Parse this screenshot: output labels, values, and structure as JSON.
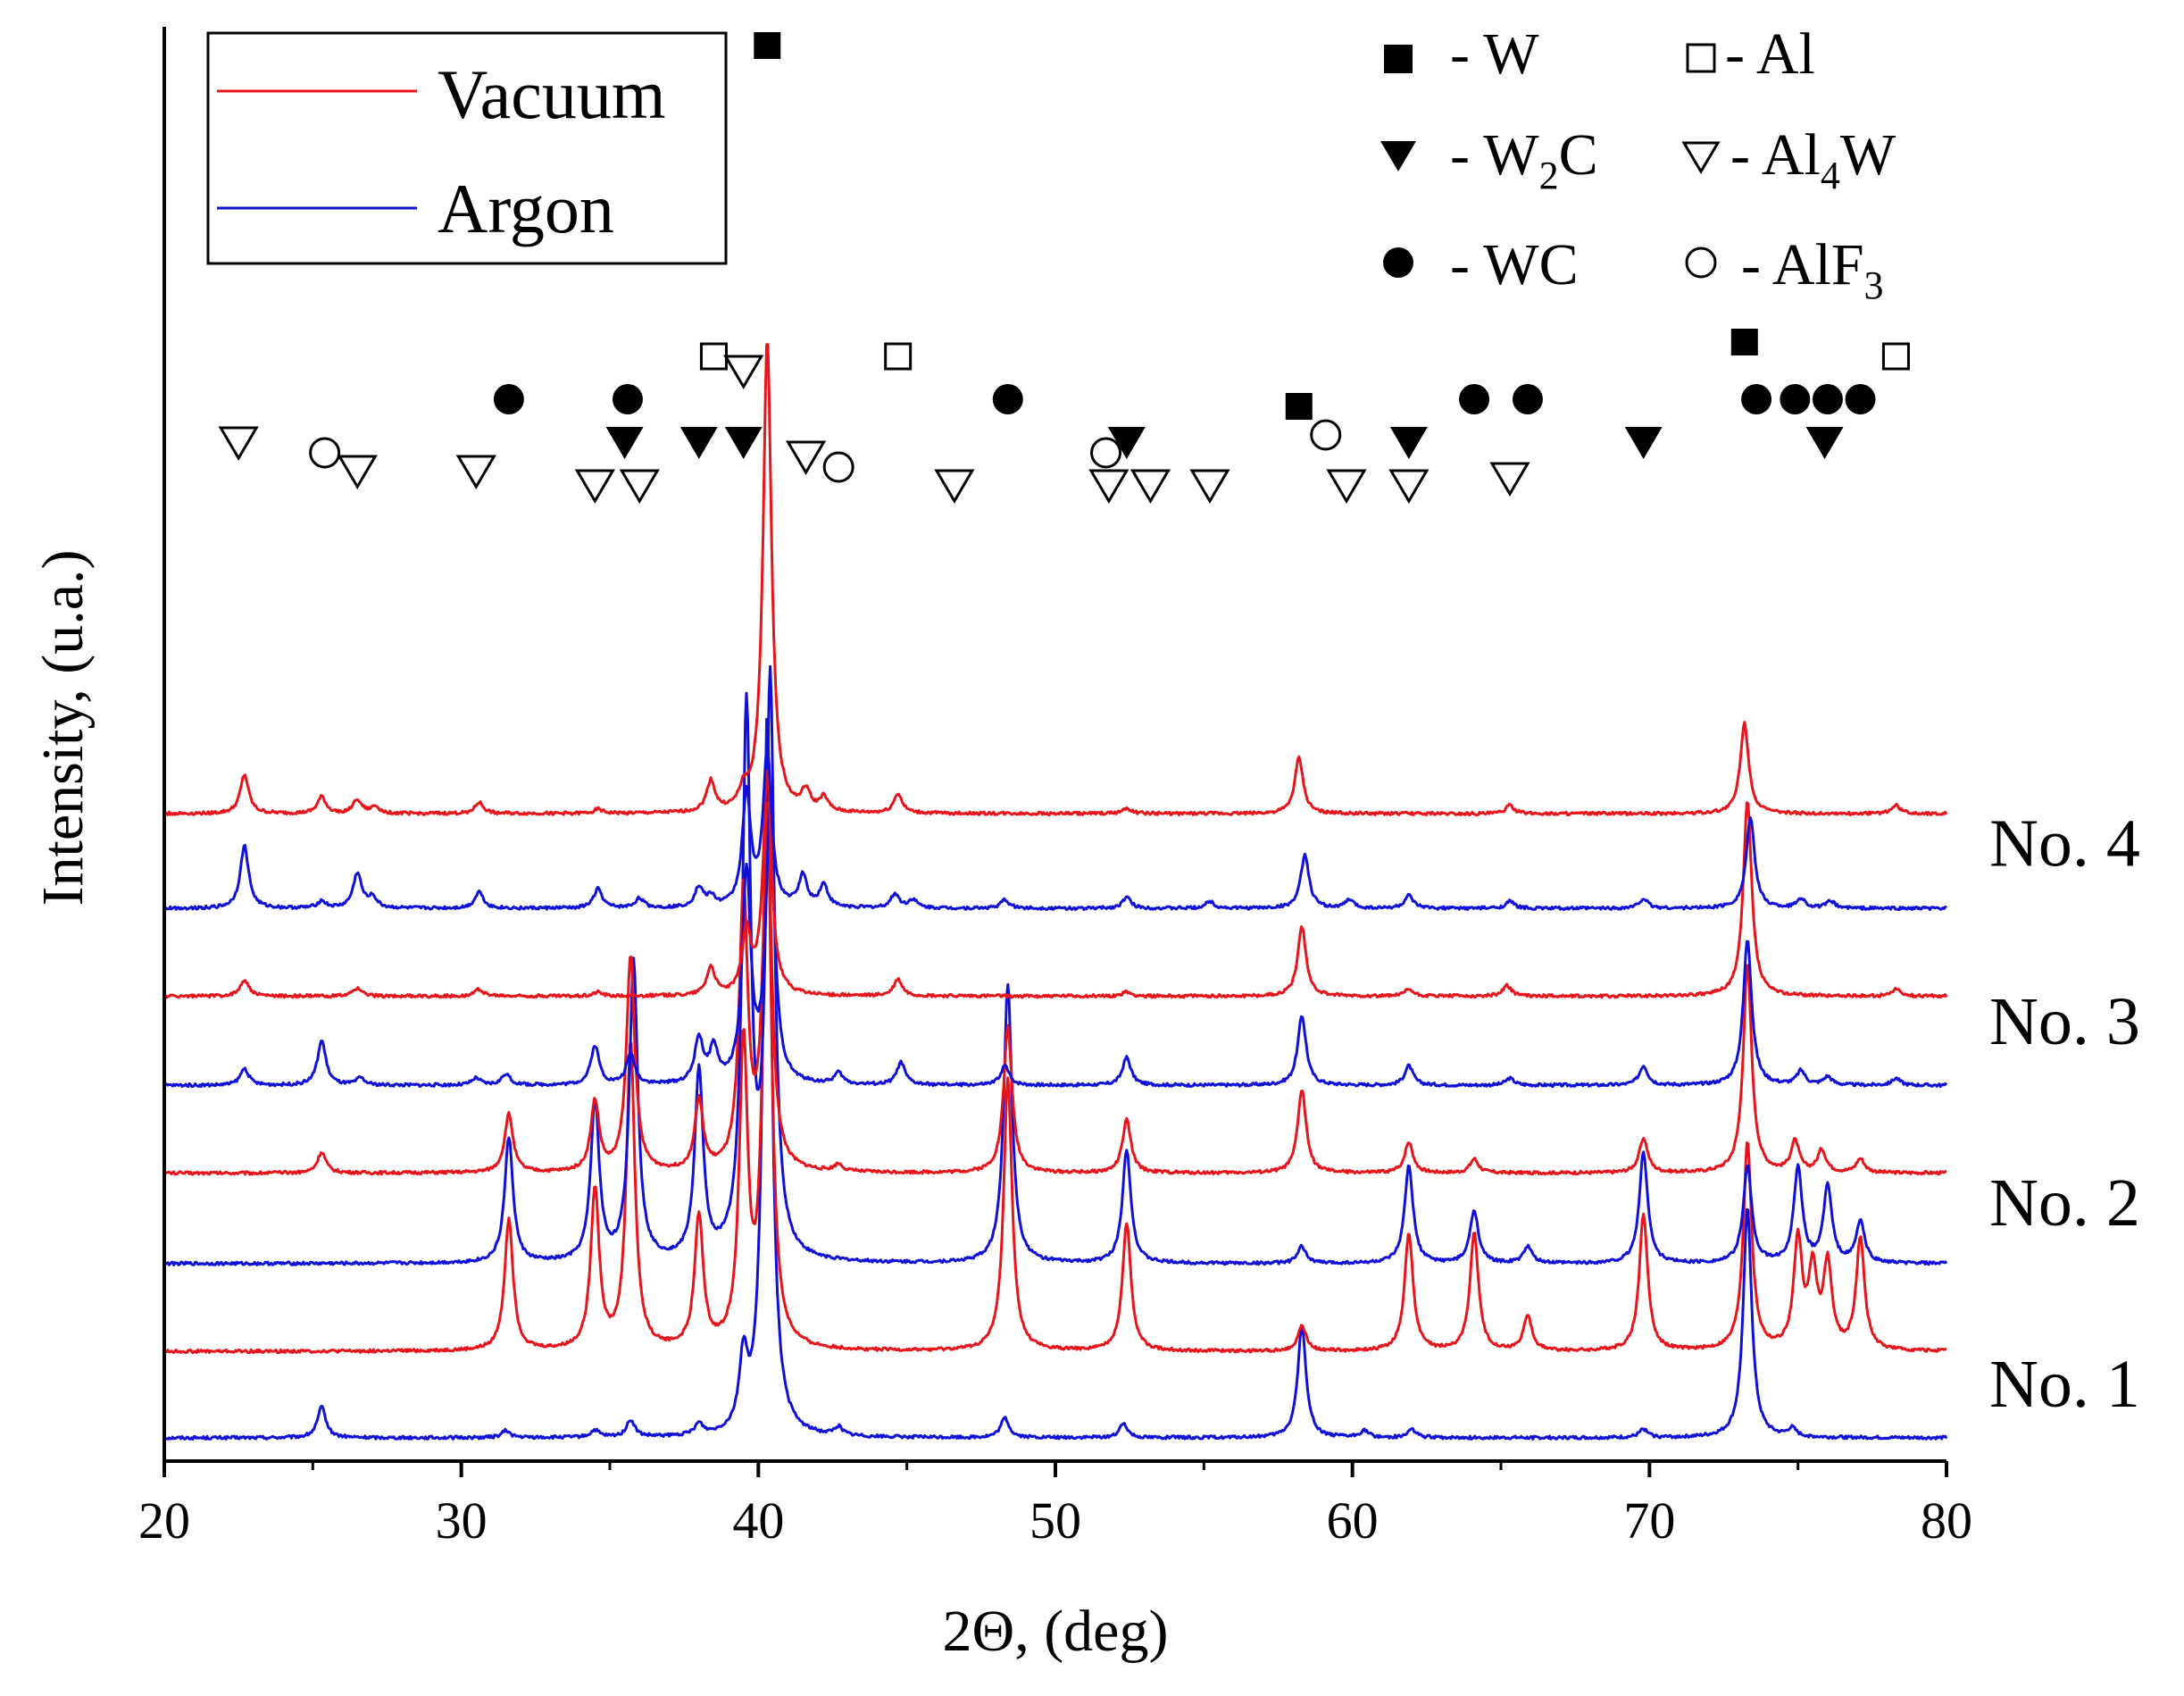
{
  "chart_data": {
    "type": "line",
    "title": "",
    "xlabel": "2Θ, (deg)",
    "ylabel": "Intensity, (u.a.)",
    "xlim": [
      20,
      80
    ],
    "xticks": [
      20,
      30,
      40,
      50,
      60,
      70,
      80
    ],
    "legend": {
      "position": "top-left",
      "entries": [
        {
          "name": "Vacuum",
          "color": "#e8141b"
        },
        {
          "name": "Argon",
          "color": "#1010d8"
        }
      ]
    },
    "phase_legend": [
      {
        "symbol": "filled-square",
        "text": "- W"
      },
      {
        "symbol": "open-square",
        "text": "- Al"
      },
      {
        "symbol": "filled-down-triangle",
        "text": "- W",
        "sub": "2",
        "after": "C"
      },
      {
        "symbol": "open-down-triangle",
        "text": "- Al",
        "sub": "4",
        "after": "W"
      },
      {
        "symbol": "filled-circle",
        "text": "- WC"
      },
      {
        "symbol": "open-circle",
        "text": "- AlF",
        "sub": "3",
        "after": ""
      }
    ],
    "series": [
      {
        "name": "No. 1 Argon",
        "atmosphere": "Argon",
        "sample": "No. 1",
        "offset": 0,
        "peaks": [
          [
            25.3,
            22
          ],
          [
            31.5,
            5
          ],
          [
            34.5,
            5
          ],
          [
            35.7,
            12
          ],
          [
            38.0,
            8
          ],
          [
            39.5,
            50
          ],
          [
            40.3,
            520
          ],
          [
            42.7,
            6
          ],
          [
            48.3,
            14
          ],
          [
            52.3,
            10
          ],
          [
            58.3,
            80
          ],
          [
            60.4,
            5
          ],
          [
            62.0,
            6
          ],
          [
            69.8,
            6
          ],
          [
            73.3,
            165
          ],
          [
            74.8,
            6
          ]
        ]
      },
      {
        "name": "No. 1 Vacuum",
        "atmosphere": "Vacuum",
        "sample": "No. 1",
        "offset": 62,
        "peaks": [
          [
            31.6,
            95
          ],
          [
            34.5,
            115
          ],
          [
            35.7,
            220
          ],
          [
            38.0,
            95
          ],
          [
            39.5,
            215
          ],
          [
            40.3,
            390
          ],
          [
            48.4,
            195
          ],
          [
            52.4,
            92
          ],
          [
            58.3,
            18
          ],
          [
            61.9,
            85
          ],
          [
            64.1,
            85
          ],
          [
            65.9,
            25
          ],
          [
            69.8,
            98
          ],
          [
            73.3,
            150
          ],
          [
            75.0,
            78
          ],
          [
            75.5,
            55
          ],
          [
            76.0,
            60
          ],
          [
            77.1,
            80
          ]
        ]
      },
      {
        "name": "No. 2 Argon",
        "atmosphere": "Argon",
        "sample": "No. 2",
        "offset": 125,
        "peaks": [
          [
            31.6,
            90
          ],
          [
            34.5,
            115
          ],
          [
            35.8,
            215
          ],
          [
            38.0,
            135
          ],
          [
            39.6,
            390
          ],
          [
            40.4,
            410
          ],
          [
            48.4,
            200
          ],
          [
            52.4,
            82
          ],
          [
            58.3,
            12
          ],
          [
            61.9,
            70
          ],
          [
            64.1,
            38
          ],
          [
            65.9,
            12
          ],
          [
            69.8,
            80
          ],
          [
            73.3,
            70
          ],
          [
            75.0,
            68
          ],
          [
            76.0,
            55
          ],
          [
            77.1,
            30
          ]
        ]
      },
      {
        "name": "No. 2 Vacuum",
        "atmosphere": "Vacuum",
        "sample": "No. 2",
        "offset": 190,
        "peaks": [
          [
            25.3,
            15
          ],
          [
            31.6,
            42
          ],
          [
            34.5,
            50
          ],
          [
            35.7,
            155
          ],
          [
            38.0,
            50
          ],
          [
            39.5,
            200
          ],
          [
            40.3,
            260
          ],
          [
            42.7,
            5
          ],
          [
            48.4,
            105
          ],
          [
            52.4,
            38
          ],
          [
            58.3,
            60
          ],
          [
            61.9,
            22
          ],
          [
            64.1,
            10
          ],
          [
            69.8,
            25
          ],
          [
            73.3,
            150
          ],
          [
            74.9,
            22
          ],
          [
            75.8,
            16
          ],
          [
            77.1,
            10
          ]
        ]
      },
      {
        "name": "No. 3 Argon",
        "atmosphere": "Argon",
        "sample": "No. 3",
        "offset": 253,
        "peaks": [
          [
            22.7,
            12
          ],
          [
            25.3,
            32
          ],
          [
            26.6,
            5
          ],
          [
            30.5,
            5
          ],
          [
            31.5,
            8
          ],
          [
            34.5,
            28
          ],
          [
            35.7,
            22
          ],
          [
            38.0,
            32
          ],
          [
            38.5,
            24
          ],
          [
            39.6,
            150
          ],
          [
            40.4,
            200
          ],
          [
            42.7,
            8
          ],
          [
            44.8,
            16
          ],
          [
            48.3,
            14
          ],
          [
            52.4,
            20
          ],
          [
            58.3,
            50
          ],
          [
            61.9,
            14
          ],
          [
            65.3,
            5
          ],
          [
            69.8,
            14
          ],
          [
            73.3,
            105
          ],
          [
            75.1,
            10
          ],
          [
            76.0,
            6
          ],
          [
            78.3,
            5
          ]
        ]
      },
      {
        "name": "No. 3 Vacuum",
        "atmosphere": "Vacuum",
        "sample": "No. 3",
        "offset": 317,
        "peaks": [
          [
            22.7,
            12
          ],
          [
            26.5,
            6
          ],
          [
            30.6,
            5
          ],
          [
            34.6,
            3
          ],
          [
            38.4,
            20
          ],
          [
            39.6,
            45
          ],
          [
            40.3,
            160
          ],
          [
            44.7,
            12
          ],
          [
            52.4,
            3
          ],
          [
            58.3,
            50
          ],
          [
            61.9,
            5
          ],
          [
            65.2,
            8
          ],
          [
            73.3,
            140
          ],
          [
            78.3,
            5
          ]
        ]
      },
      {
        "name": "No. 4 Argon",
        "atmosphere": "Argon",
        "sample": "No. 4",
        "offset": 380,
        "peaks": [
          [
            22.7,
            45
          ],
          [
            25.3,
            5
          ],
          [
            26.5,
            25
          ],
          [
            27.0,
            8
          ],
          [
            30.6,
            12
          ],
          [
            34.6,
            14
          ],
          [
            36.0,
            7
          ],
          [
            38.0,
            14
          ],
          [
            38.4,
            7
          ],
          [
            39.6,
            80
          ],
          [
            40.3,
            110
          ],
          [
            41.5,
            22
          ],
          [
            42.2,
            16
          ],
          [
            44.6,
            10
          ],
          [
            45.2,
            6
          ],
          [
            48.3,
            6
          ],
          [
            52.4,
            8
          ],
          [
            55.2,
            5
          ],
          [
            58.4,
            38
          ],
          [
            59.9,
            6
          ],
          [
            61.9,
            9
          ],
          [
            65.3,
            5
          ],
          [
            69.8,
            7
          ],
          [
            73.4,
            65
          ],
          [
            75.1,
            7
          ],
          [
            76.1,
            5
          ]
        ]
      },
      {
        "name": "No. 4 Vacuum",
        "atmosphere": "Vacuum",
        "sample": "No. 4",
        "offset": 448,
        "peaks": [
          [
            22.7,
            28
          ],
          [
            25.3,
            12
          ],
          [
            26.5,
            10
          ],
          [
            27.1,
            5
          ],
          [
            30.6,
            8
          ],
          [
            34.6,
            3
          ],
          [
            38.4,
            22
          ],
          [
            39.5,
            12
          ],
          [
            40.3,
            340
          ],
          [
            41.6,
            14
          ],
          [
            42.2,
            10
          ],
          [
            44.7,
            14
          ],
          [
            52.4,
            4
          ],
          [
            58.2,
            40
          ],
          [
            65.3,
            6
          ],
          [
            73.2,
            65
          ],
          [
            78.3,
            6
          ]
        ]
      }
    ],
    "sample_labels": [
      {
        "text": "No. 1",
        "offset": 20
      },
      {
        "text": "No. 2",
        "offset": 150
      },
      {
        "text": "No. 3",
        "offset": 280
      },
      {
        "text": "No. 4",
        "offset": 408
      }
    ],
    "phase_markers": [
      {
        "phase": "Al4W",
        "symbol": "open-down-triangle",
        "x": 22.5,
        "row": 2
      },
      {
        "phase": "AlF3",
        "symbol": "open-circle",
        "x": 25.4,
        "row": 1.7
      },
      {
        "phase": "Al4W",
        "symbol": "open-down-triangle",
        "x": 26.5,
        "row": 1.2
      },
      {
        "phase": "Al4W",
        "symbol": "open-down-triangle",
        "x": 30.5,
        "row": 1.2
      },
      {
        "phase": "Al4W",
        "symbol": "open-down-triangle",
        "x": 34.5,
        "row": 0.8
      },
      {
        "phase": "Al4W",
        "symbol": "open-down-triangle",
        "x": 36.0,
        "row": 0.8
      },
      {
        "phase": "WC",
        "symbol": "filled-circle",
        "x": 31.6,
        "row": 3.2
      },
      {
        "phase": "WC",
        "symbol": "filled-circle",
        "x": 35.6,
        "row": 3.2
      },
      {
        "phase": "W2C",
        "symbol": "filled-down-triangle",
        "x": 35.5,
        "row": 2
      },
      {
        "phase": "W2C",
        "symbol": "filled-down-triangle",
        "x": 38.0,
        "row": 2
      },
      {
        "phase": "W2C",
        "symbol": "filled-down-triangle",
        "x": 39.5,
        "row": 2
      },
      {
        "phase": "Al",
        "symbol": "open-square",
        "x": 38.5,
        "row": 4.4
      },
      {
        "phase": "Al4W",
        "symbol": "open-down-triangle",
        "x": 39.5,
        "row": 4.0
      },
      {
        "phase": "W",
        "symbol": "filled-square",
        "x": 40.3,
        "row": 13.1
      },
      {
        "phase": "Al4W",
        "symbol": "open-down-triangle",
        "x": 41.6,
        "row": 1.6
      },
      {
        "phase": "AlF3",
        "symbol": "open-circle",
        "x": 42.7,
        "row": 1.3
      },
      {
        "phase": "Al",
        "symbol": "open-square",
        "x": 44.7,
        "row": 4.4
      },
      {
        "phase": "Al4W",
        "symbol": "open-down-triangle",
        "x": 46.6,
        "row": 0.8
      },
      {
        "phase": "WC",
        "symbol": "filled-circle",
        "x": 48.4,
        "row": 3.2
      },
      {
        "phase": "AlF3",
        "symbol": "open-circle",
        "x": 51.7,
        "row": 1.7
      },
      {
        "phase": "Al4W",
        "symbol": "open-down-triangle",
        "x": 51.8,
        "row": 0.8
      },
      {
        "phase": "W2C",
        "symbol": "filled-down-triangle",
        "x": 52.4,
        "row": 2
      },
      {
        "phase": "Al4W",
        "symbol": "open-down-triangle",
        "x": 53.2,
        "row": 0.8
      },
      {
        "phase": "Al4W",
        "symbol": "open-down-triangle",
        "x": 55.2,
        "row": 0.8
      },
      {
        "phase": "W",
        "symbol": "filled-square",
        "x": 58.2,
        "row": 3.0
      },
      {
        "phase": "AlF3",
        "symbol": "open-circle",
        "x": 59.1,
        "row": 2.2
      },
      {
        "phase": "Al4W",
        "symbol": "open-down-triangle",
        "x": 59.8,
        "row": 0.8
      },
      {
        "phase": "W2C",
        "symbol": "filled-down-triangle",
        "x": 61.9,
        "row": 2
      },
      {
        "phase": "Al4W",
        "symbol": "open-down-triangle",
        "x": 61.9,
        "row": 0.8
      },
      {
        "phase": "WC",
        "symbol": "filled-circle",
        "x": 64.1,
        "row": 3.2
      },
      {
        "phase": "WC",
        "symbol": "filled-circle",
        "x": 65.9,
        "row": 3.2
      },
      {
        "phase": "Al4W",
        "symbol": "open-down-triangle",
        "x": 65.3,
        "row": 1.0
      },
      {
        "phase": "W2C",
        "symbol": "filled-down-triangle",
        "x": 69.8,
        "row": 2
      },
      {
        "phase": "W",
        "symbol": "filled-square",
        "x": 73.2,
        "row": 4.8
      },
      {
        "phase": "WC",
        "symbol": "filled-circle",
        "x": 73.6,
        "row": 3.2
      },
      {
        "phase": "WC",
        "symbol": "filled-circle",
        "x": 74.9,
        "row": 3.2
      },
      {
        "phase": "WC",
        "symbol": "filled-circle",
        "x": 76.0,
        "row": 3.2
      },
      {
        "phase": "WC",
        "symbol": "filled-circle",
        "x": 77.1,
        "row": 3.2
      },
      {
        "phase": "W2C",
        "symbol": "filled-down-triangle",
        "x": 75.9,
        "row": 2
      },
      {
        "phase": "Al",
        "symbol": "open-square",
        "x": 78.3,
        "row": 4.4
      }
    ]
  }
}
